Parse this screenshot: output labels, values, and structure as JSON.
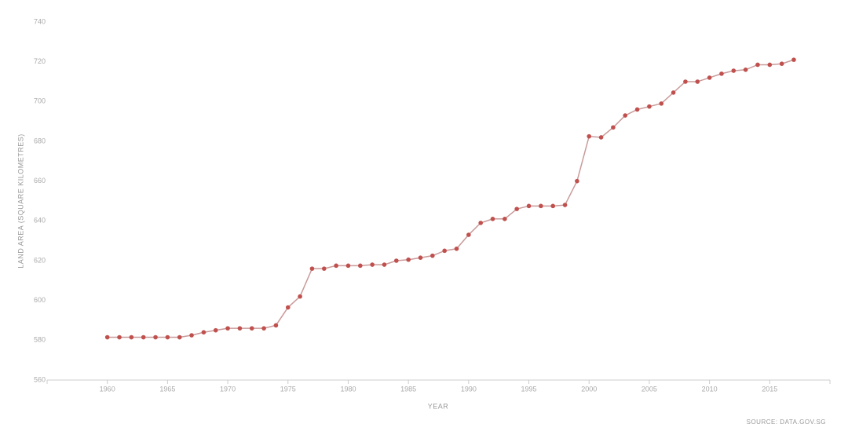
{
  "chart_data": {
    "type": "line",
    "x_label": "YEAR",
    "y_label": "LAND AREA (SQUARE KILOMETRES)",
    "source": "SOURCE: DATA.GOV.SG",
    "x": [
      1960,
      1961,
      1962,
      1963,
      1964,
      1965,
      1966,
      1967,
      1968,
      1969,
      1970,
      1971,
      1972,
      1973,
      1974,
      1975,
      1976,
      1977,
      1978,
      1979,
      1980,
      1981,
      1982,
      1983,
      1984,
      1985,
      1986,
      1987,
      1988,
      1989,
      1990,
      1991,
      1992,
      1993,
      1994,
      1995,
      1996,
      1997,
      1998,
      1999,
      2000,
      2001,
      2002,
      2003,
      2004,
      2005,
      2006,
      2007,
      2008,
      2009,
      2010,
      2011,
      2012,
      2013,
      2014,
      2015,
      2016,
      2017
    ],
    "series": [
      {
        "color": "#c0504d",
        "line_color": "#c99a9a",
        "values": [
          581.5,
          581.5,
          581.5,
          581.5,
          581.5,
          581.5,
          581.5,
          582.5,
          584,
          585,
          586,
          586,
          586,
          586,
          587.5,
          596.5,
          602,
          616,
          616,
          617.5,
          617.5,
          617.5,
          618,
          618,
          620,
          620.5,
          621.5,
          622.5,
          625,
          626,
          633,
          639,
          641,
          641,
          646,
          647.5,
          647.5,
          647.5,
          648,
          660,
          682.5,
          682,
          687,
          693,
          696,
          697.5,
          699,
          704.5,
          710,
          710,
          712,
          714,
          715.5,
          716,
          718.5,
          718.5,
          719,
          721
        ]
      }
    ],
    "xlim": [
      1955,
      2020
    ],
    "xticks": [
      1960,
      1965,
      1970,
      1975,
      1980,
      1985,
      1990,
      1995,
      2000,
      2005,
      2010,
      2015
    ],
    "ylim": [
      560,
      740
    ],
    "yticks": [
      560,
      580,
      600,
      620,
      640,
      660,
      680,
      700,
      720,
      740
    ],
    "grid": false
  }
}
